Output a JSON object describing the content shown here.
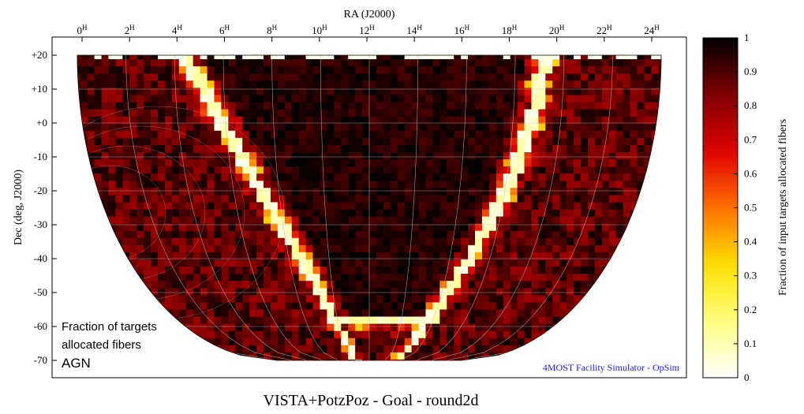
{
  "chart_data": {
    "type": "heatmap",
    "projection": "aitoff-like all-sky map",
    "title": "VISTA+PotzPoz - Goal - round2d",
    "xlabel": "RA (J2000)",
    "ylabel": "Dec (deg, J2000)",
    "colorbar_label": "Fraction of input targets allocated fibers",
    "x_ticks": [
      {
        "value": 0,
        "label": "0",
        "sup": "H"
      },
      {
        "value": 2,
        "label": "2",
        "sup": "H"
      },
      {
        "value": 4,
        "label": "4",
        "sup": "H"
      },
      {
        "value": 6,
        "label": "6",
        "sup": "H"
      },
      {
        "value": 8,
        "label": "8",
        "sup": "H"
      },
      {
        "value": 10,
        "label": "10",
        "sup": "H"
      },
      {
        "value": 12,
        "label": "12",
        "sup": "H"
      },
      {
        "value": 14,
        "label": "14",
        "sup": "H"
      },
      {
        "value": 16,
        "label": "16",
        "sup": "H"
      },
      {
        "value": 18,
        "label": "18",
        "sup": "H"
      },
      {
        "value": 20,
        "label": "20",
        "sup": "H"
      },
      {
        "value": 22,
        "label": "22",
        "sup": "H"
      },
      {
        "value": 24,
        "label": "24",
        "sup": "H"
      }
    ],
    "y_ticks": [
      {
        "value": 20,
        "label": "+20"
      },
      {
        "value": 10,
        "label": "+10"
      },
      {
        "value": 0,
        "label": "+0"
      },
      {
        "value": -10,
        "label": "-10"
      },
      {
        "value": -20,
        "label": "-20"
      },
      {
        "value": -30,
        "label": "-30"
      },
      {
        "value": -40,
        "label": "-40"
      },
      {
        "value": -50,
        "label": "-50"
      },
      {
        "value": -60,
        "label": "-60"
      },
      {
        "value": -70,
        "label": "-70"
      }
    ],
    "xlim": [
      0,
      24
    ],
    "ylim": [
      -70,
      20
    ],
    "colorbar_range": [
      0,
      1
    ],
    "colorbar_ticks": [
      {
        "value": 1,
        "label": "1"
      },
      {
        "value": 0.9,
        "label": "0.9"
      },
      {
        "value": 0.8,
        "label": "0.8"
      },
      {
        "value": 0.7,
        "label": "0.7"
      },
      {
        "value": 0.6,
        "label": "0.6"
      },
      {
        "value": 0.5,
        "label": "0.5"
      },
      {
        "value": 0.4,
        "label": "0.4"
      },
      {
        "value": 0.3,
        "label": "0.3"
      },
      {
        "value": 0.2,
        "label": "0.2"
      },
      {
        "value": 0.1,
        "label": "0.1"
      },
      {
        "value": 0,
        "label": "0"
      }
    ],
    "colormap": [
      "#ffffff",
      "#ffff80",
      "#ffe000",
      "#ff7000",
      "#e00000",
      "#800000",
      "#000000"
    ],
    "annotation_lines": [
      "Fraction of targets",
      "allocated fibers",
      "AGN"
    ],
    "credit": "4MOST Facility Simulator - OpSim",
    "credit_color": "#1a1aff",
    "grid": true,
    "typical_fraction_high_galactic_latitude": 0.9,
    "typical_fraction_galactic_plane_edge": 0.05
  }
}
